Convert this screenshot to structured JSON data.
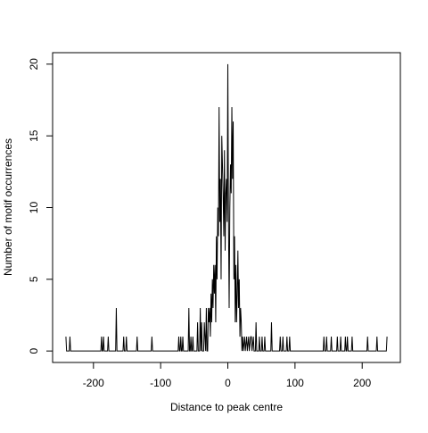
{
  "chart_data": {
    "type": "line",
    "xlabel": "Distance to peak centre",
    "ylabel": "Number of motif occurrences",
    "xlim": [
      -260.8,
      256.8
    ],
    "ylim": [
      -0.8,
      20.8
    ],
    "xticks": [
      -200,
      -100,
      0,
      100,
      200
    ],
    "yticks": [
      0,
      5,
      10,
      15,
      20
    ],
    "color": "#000000",
    "x": [
      -241,
      -240,
      -236,
      -235,
      -234,
      -189,
      -188,
      -187,
      -186,
      -185,
      -184,
      -179,
      -178,
      -177,
      -167,
      -166,
      -165,
      -156,
      -155,
      -154,
      -152,
      -151,
      -150,
      -136,
      -135,
      -134,
      -114,
      -113,
      -112,
      -74,
      -73,
      -72,
      -71,
      -70,
      -69,
      -68,
      -67,
      -66,
      -59,
      -58,
      -57,
      -56,
      -55,
      -54,
      -53,
      -52,
      -51,
      -46,
      -45,
      -44,
      -42,
      -41,
      -40,
      -39,
      -38,
      -36,
      -35,
      -34,
      -33,
      -32,
      -31,
      -30,
      -29,
      -28,
      -27,
      -26,
      -25,
      -24,
      -23,
      -22,
      -21,
      -20,
      -19,
      -18,
      -17,
      -16,
      -15,
      -14,
      -13,
      -12,
      -11,
      -10,
      -9,
      -8,
      -7,
      -6,
      -5,
      -4,
      -3,
      -2,
      -1,
      0,
      1,
      2,
      3,
      4,
      5,
      6,
      7,
      8,
      9,
      10,
      11,
      12,
      13,
      14,
      15,
      16,
      17,
      18,
      19,
      20,
      21,
      22,
      23,
      25,
      26,
      28,
      29,
      31,
      32,
      34,
      35,
      36,
      38,
      39,
      41,
      42,
      43,
      46,
      47,
      48,
      50,
      51,
      52,
      54,
      55,
      56,
      64,
      65,
      66,
      77,
      78,
      79,
      81,
      82,
      83,
      87,
      88,
      89,
      91,
      92,
      93,
      142,
      143,
      144,
      146,
      147,
      148,
      153,
      154,
      155,
      162,
      163,
      164,
      167,
      168,
      169,
      174,
      175,
      176,
      177,
      178,
      179,
      184,
      185,
      186,
      207,
      208,
      209,
      221,
      222,
      223,
      236,
      237
    ],
    "values": [
      1,
      0,
      0,
      1,
      0,
      0,
      1,
      0,
      0,
      1,
      0,
      0,
      1,
      0,
      0,
      3,
      0,
      0,
      1,
      0,
      0,
      1,
      0,
      0,
      1,
      0,
      0,
      1,
      0,
      0,
      1,
      0,
      0,
      1,
      0,
      0,
      1,
      0,
      0,
      3,
      0,
      0,
      1,
      0,
      0,
      1,
      0,
      0,
      2,
      0,
      0,
      3,
      0,
      2,
      0,
      0,
      2,
      1,
      0,
      3,
      0,
      0,
      3,
      2,
      3,
      1,
      4,
      2,
      5,
      3,
      6,
      4,
      6,
      2,
      8,
      5,
      10,
      8,
      17,
      9,
      12,
      5,
      15,
      13,
      11,
      8,
      14,
      7,
      11,
      12,
      9,
      20,
      9,
      3,
      10,
      13,
      11,
      17,
      12,
      16,
      5,
      8,
      2,
      6,
      2,
      4,
      7,
      3,
      5,
      1,
      3,
      2,
      0,
      1,
      0,
      1,
      0,
      1,
      0,
      1,
      0,
      1,
      1,
      0,
      1,
      0,
      0,
      2,
      0,
      0,
      1,
      0,
      0,
      1,
      0,
      0,
      1,
      0,
      0,
      2,
      0,
      0,
      1,
      0,
      0,
      1,
      0,
      0,
      1,
      0,
      0,
      1,
      0,
      0,
      1,
      0,
      0,
      1,
      0,
      0,
      1,
      0,
      0,
      1,
      0,
      0,
      1,
      0,
      0,
      1,
      0,
      0,
      1,
      0,
      0,
      1,
      0,
      0,
      1,
      0,
      0,
      1,
      0,
      0,
      1
    ]
  }
}
